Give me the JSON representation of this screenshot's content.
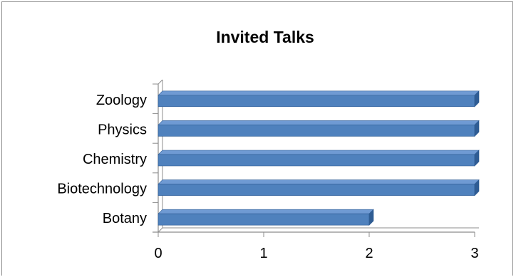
{
  "chart_data": {
    "type": "bar",
    "orientation": "horizontal",
    "title": "Invited Talks",
    "categories": [
      "Zoology",
      "Physics",
      "Chemistry",
      "Biotechnology",
      "Botany"
    ],
    "values": [
      3,
      3,
      3,
      3,
      2
    ],
    "xlim": [
      0,
      3
    ],
    "xticks": [
      "0",
      "1",
      "2",
      "3"
    ],
    "grid": false,
    "legend": "none",
    "bar_color": "#4f81bd",
    "bar_top_color": "#6f9ad3",
    "bar_side_color": "#2f5c93",
    "axis_color": "#8c8c8c"
  }
}
